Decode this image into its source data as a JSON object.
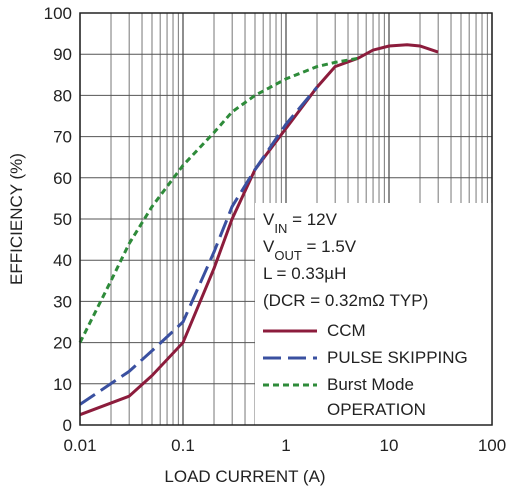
{
  "chart_data": {
    "type": "line",
    "ylabel": "EFFICIENCY (%)",
    "xlabel": "LOAD CURRENT (A)",
    "xscale": "log",
    "xlim": [
      0.01,
      100
    ],
    "xticks": [
      0.01,
      0.1,
      1,
      10,
      100
    ],
    "xgrid_minor": [
      0.02,
      0.03,
      0.04,
      0.05,
      0.06,
      0.07,
      0.08,
      0.09,
      0.2,
      0.3,
      0.4,
      0.5,
      0.6,
      0.7,
      0.8,
      0.9,
      2,
      3,
      4,
      5,
      6,
      7,
      8,
      9,
      20,
      30,
      40,
      50,
      60,
      70,
      80,
      90
    ],
    "ylim": [
      0,
      100
    ],
    "yticks": [
      0,
      10,
      20,
      30,
      40,
      50,
      60,
      70,
      80,
      90,
      100
    ],
    "grid": true,
    "legend": "lower right",
    "annotation": [
      [
        {
          "text": "V"
        },
        {
          "text": "IN",
          "sub": true
        },
        {
          "text": " = 12V"
        }
      ],
      [
        {
          "text": "V"
        },
        {
          "text": "OUT",
          "sub": true
        },
        {
          "text": " = 1.5V"
        }
      ],
      [
        {
          "text": "L = 0.33µH"
        }
      ],
      [
        {
          "text": "(DCR = 0.32mΩ TYP)"
        }
      ]
    ],
    "series": [
      {
        "name": "CCM",
        "color": "#8c1c3c",
        "dash": "none",
        "x": [
          0.01,
          0.03,
          0.05,
          0.1,
          0.2,
          0.3,
          0.5,
          1,
          2,
          3,
          5,
          7,
          10,
          15,
          20,
          30
        ],
        "values": [
          2.5,
          7,
          12,
          20,
          38,
          50,
          62,
          72,
          82,
          87,
          89,
          91,
          92,
          92.3,
          92,
          90.5
        ]
      },
      {
        "name": "PULSE SKIPPING",
        "color": "#3a50a0",
        "dash": "18 7",
        "x": [
          0.01,
          0.03,
          0.05,
          0.1,
          0.2,
          0.3,
          0.5,
          1,
          2
        ],
        "values": [
          5,
          13,
          18,
          25,
          42,
          53,
          62,
          73,
          82
        ]
      },
      {
        "name": "Burst Mode OPERATION",
        "color": "#2e8b3a",
        "dash": "6 4",
        "x": [
          0.01,
          0.02,
          0.03,
          0.05,
          0.1,
          0.2,
          0.3,
          0.5,
          1,
          2,
          3,
          5
        ],
        "values": [
          20,
          35,
          44,
          53,
          63,
          71,
          76,
          80,
          84,
          87,
          88,
          89
        ]
      }
    ]
  }
}
